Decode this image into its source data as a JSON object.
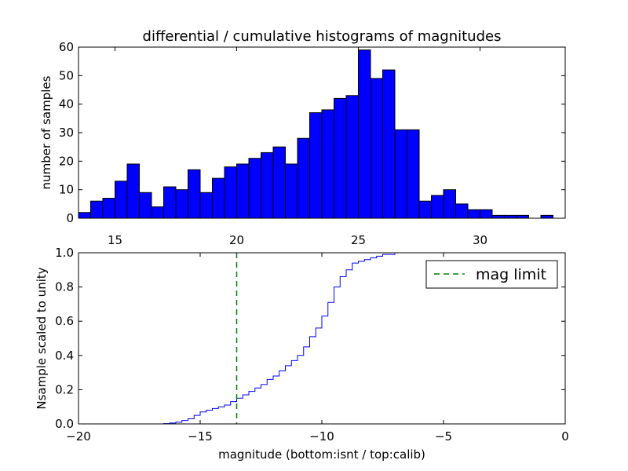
{
  "chart_data": [
    {
      "type": "bar",
      "title": "differential / cumulative histograms of magnitudes",
      "ylabel": "number of samples",
      "xlim": [
        13.5,
        33.5
      ],
      "ylim": [
        0,
        60
      ],
      "xticks": [
        15,
        20,
        25,
        30
      ],
      "xtick_labels": [
        "15",
        "20",
        "25",
        "30"
      ],
      "yticks": [
        0,
        10,
        20,
        30,
        40,
        50,
        60
      ],
      "ytick_labels": [
        "0",
        "10",
        "20",
        "30",
        "40",
        "50",
        "60"
      ],
      "bin_edges": [
        13.5,
        14.0,
        14.5,
        15.0,
        15.5,
        16.0,
        16.5,
        17.0,
        17.5,
        18.0,
        18.5,
        19.0,
        19.5,
        20.0,
        20.5,
        21.0,
        21.5,
        22.0,
        22.5,
        23.0,
        23.5,
        24.0,
        24.5,
        25.0,
        25.5,
        26.0,
        26.5,
        27.0,
        27.5,
        28.0,
        28.5,
        29.0,
        29.5,
        30.0,
        30.5,
        31.0,
        31.5,
        32.0,
        32.5,
        33.0,
        33.5
      ],
      "values": [
        2,
        6,
        7,
        13,
        19,
        9,
        4,
        11,
        10,
        17,
        9,
        14,
        18,
        19,
        21,
        23,
        25,
        19,
        28,
        37,
        38,
        42,
        43,
        59,
        49,
        52,
        31,
        31,
        6,
        8,
        10,
        5,
        3,
        3,
        1,
        1,
        1,
        0,
        1,
        0
      ],
      "bar_color": "#0000ff",
      "grid": false
    },
    {
      "type": "line",
      "drawstyle": "steps",
      "xlabel": "magnitude (bottom:isnt / top:calib)",
      "ylabel": "Nsample scaled to unity",
      "xlim": [
        -20,
        0
      ],
      "ylim": [
        0,
        1
      ],
      "xticks": [
        -20,
        -15,
        -10,
        -5,
        0
      ],
      "xtick_labels": [
        "−20",
        "−15",
        "−10",
        "−5",
        "0"
      ],
      "yticks": [
        0,
        0.2,
        0.4,
        0.6,
        0.8,
        1.0
      ],
      "ytick_labels": [
        "0.0",
        "0.2",
        "0.4",
        "0.6",
        "0.8",
        "1.0"
      ],
      "series": [
        {
          "color": "#0000ff",
          "x": [
            -20,
            -16.5,
            -16.25,
            -16,
            -15.75,
            -15.5,
            -15.25,
            -15,
            -14.75,
            -14.5,
            -14.25,
            -14,
            -13.75,
            -13.5,
            -13.25,
            -13,
            -12.75,
            -12.5,
            -12.25,
            -12,
            -11.75,
            -11.5,
            -11.25,
            -11,
            -10.75,
            -10.5,
            -10.25,
            -10,
            -9.75,
            -9.5,
            -9.25,
            -9,
            -8.75,
            -8.5,
            -8.25,
            -8,
            -7.75,
            -7.5,
            -7,
            0
          ],
          "y": [
            0.0,
            0.002,
            0.005,
            0.01,
            0.02,
            0.03,
            0.05,
            0.07,
            0.08,
            0.09,
            0.1,
            0.11,
            0.13,
            0.15,
            0.17,
            0.19,
            0.21,
            0.23,
            0.26,
            0.28,
            0.31,
            0.34,
            0.37,
            0.4,
            0.45,
            0.51,
            0.56,
            0.63,
            0.71,
            0.8,
            0.86,
            0.9,
            0.94,
            0.95,
            0.96,
            0.97,
            0.98,
            0.99,
            1.0,
            1.0
          ]
        },
        {
          "name": "mag limit",
          "color": "#008000",
          "style": "dashed",
          "vertical_x": -13.5
        }
      ],
      "legend": {
        "placement": "top-right",
        "entries": [
          "mag limit"
        ]
      },
      "grid": false
    }
  ]
}
